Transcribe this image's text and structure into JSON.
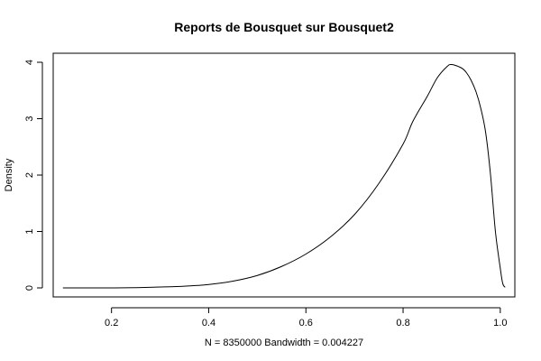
{
  "chart_data": {
    "type": "line",
    "title": "Reports de Bousquet sur Bousquet2",
    "xlabel": "N = 8350000   Bandwidth = 0.004227",
    "ylabel": "Density",
    "xlim": [
      0.08,
      1.03
    ],
    "ylim": [
      -0.16,
      4.16
    ],
    "x_ticks": [
      0.2,
      0.4,
      0.6,
      0.8,
      1.0
    ],
    "x_tick_labels": [
      "0.2",
      "0.4",
      "0.6",
      "0.8",
      "1.0"
    ],
    "y_ticks": [
      0,
      1,
      2,
      3,
      4
    ],
    "y_tick_labels": [
      "0",
      "1",
      "2",
      "3",
      "4"
    ],
    "grid": false,
    "series": [
      {
        "x": [
          0.1,
          0.15,
          0.2,
          0.25,
          0.3,
          0.35,
          0.4,
          0.45,
          0.5,
          0.55,
          0.6,
          0.65,
          0.7,
          0.75,
          0.8,
          0.82,
          0.85,
          0.87,
          0.89,
          0.9,
          0.92,
          0.93,
          0.94,
          0.95,
          0.96,
          0.97,
          0.98,
          0.99,
          1.0,
          1.005,
          1.01
        ],
        "y": [
          0.0,
          0.0,
          0.0,
          0.005,
          0.015,
          0.03,
          0.06,
          0.12,
          0.22,
          0.38,
          0.6,
          0.9,
          1.3,
          1.85,
          2.55,
          2.95,
          3.4,
          3.72,
          3.92,
          3.96,
          3.9,
          3.82,
          3.68,
          3.48,
          3.18,
          2.75,
          2.0,
          1.0,
          0.35,
          0.08,
          0.01
        ]
      }
    ]
  }
}
